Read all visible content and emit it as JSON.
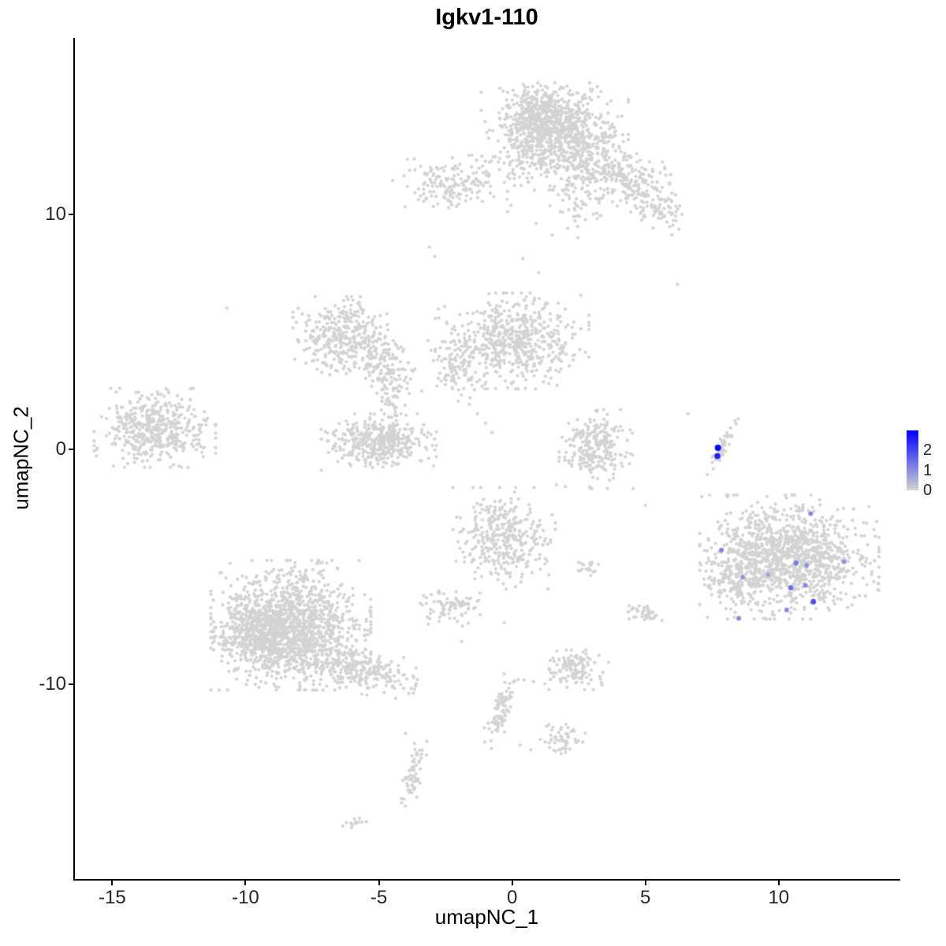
{
  "chart_data": {
    "type": "scatter",
    "title": "Igkv1-110",
    "xlabel": "umapNC_1",
    "ylabel": "umapNC_2",
    "xlim": [
      -16.4,
      14.5
    ],
    "ylim": [
      -18.3,
      17.5
    ],
    "x_ticks": [
      -15,
      -10,
      -5,
      0,
      5,
      10
    ],
    "y_ticks": [
      -10,
      0,
      10
    ],
    "grid": false,
    "legend_position": "right",
    "background_color": "#FFFFFF",
    "point_color": "#D3D3D3",
    "axis_color": "#000000",
    "colorbar": {
      "labels": [
        "2",
        "1",
        "0"
      ],
      "values": [
        2,
        1,
        0
      ],
      "bar_max": 3,
      "vmax": 2.6,
      "color_low": "#D3D3D3",
      "color_high": "#0000FF"
    },
    "clusters": [
      {
        "name": "top-main",
        "cx": 1.6,
        "cy": 13.3,
        "sx": 1.15,
        "sy": 0.95,
        "n": 800,
        "angle": 0
      },
      {
        "name": "top-main-dense",
        "cx": 1.1,
        "cy": 14.2,
        "sx": 0.65,
        "sy": 0.55,
        "n": 320,
        "angle": 0
      },
      {
        "name": "top-right-arm",
        "cx": 3.9,
        "cy": 11.7,
        "sx": 0.85,
        "sy": 0.5,
        "n": 220,
        "angle": -15
      },
      {
        "name": "top-right-ext",
        "cx": 5.2,
        "cy": 10.5,
        "sx": 0.6,
        "sy": 0.4,
        "n": 110,
        "angle": -25
      },
      {
        "name": "top-lower-tail",
        "cx": 2.5,
        "cy": 10.6,
        "sx": 0.45,
        "sy": 0.7,
        "n": 60,
        "angle": 0
      },
      {
        "name": "upper-left-small",
        "cx": -2.2,
        "cy": 11.3,
        "sx": 0.95,
        "sy": 0.5,
        "n": 170,
        "angle": 0
      },
      {
        "name": "mid-left",
        "cx": -6.3,
        "cy": 4.8,
        "sx": 0.8,
        "sy": 0.7,
        "n": 360,
        "angle": 0
      },
      {
        "name": "mid-left-arm",
        "cx": -4.7,
        "cy": 3.4,
        "sx": 0.45,
        "sy": 0.75,
        "n": 120,
        "angle": 20
      },
      {
        "name": "center-main",
        "cx": 0.0,
        "cy": 4.6,
        "sx": 1.2,
        "sy": 0.85,
        "n": 580,
        "angle": 0
      },
      {
        "name": "center-left-arm",
        "cx": -2.2,
        "cy": 3.6,
        "sx": 0.4,
        "sy": 0.65,
        "n": 80,
        "angle": 0
      },
      {
        "name": "center-bridge",
        "cx": -4.6,
        "cy": 2.0,
        "sx": 0.25,
        "sy": 0.7,
        "n": 45,
        "angle": 15
      },
      {
        "name": "crescent-mid",
        "cx": -5.0,
        "cy": 0.3,
        "sx": 0.9,
        "sy": 0.5,
        "n": 400,
        "angle": 0
      },
      {
        "name": "far-left",
        "cx": -13.4,
        "cy": 0.9,
        "sx": 0.95,
        "sy": 0.7,
        "n": 470,
        "angle": 0
      },
      {
        "name": "mid-right-small",
        "cx": 3.1,
        "cy": 0.0,
        "sx": 0.6,
        "sy": 0.7,
        "n": 250,
        "angle": 0
      },
      {
        "name": "right-streak",
        "cx": 7.9,
        "cy": 0.1,
        "sx": 0.1,
        "sy": 0.55,
        "n": 50,
        "angle": -25
      },
      {
        "name": "center-bottom",
        "cx": -0.3,
        "cy": -3.8,
        "sx": 0.8,
        "sy": 0.9,
        "n": 360,
        "angle": 0
      },
      {
        "name": "right-big",
        "cx": 10.4,
        "cy": -4.6,
        "sx": 1.4,
        "sy": 1.1,
        "n": 1200,
        "angle": 0
      },
      {
        "name": "right-big-left-arm",
        "cx": 8.4,
        "cy": -5.4,
        "sx": 0.55,
        "sy": 0.65,
        "n": 140,
        "angle": 0
      },
      {
        "name": "bottom-left-big",
        "cx": -8.3,
        "cy": -7.5,
        "sx": 1.25,
        "sy": 1.15,
        "n": 1250,
        "angle": 0
      },
      {
        "name": "bottom-left-dense",
        "cx": -9.4,
        "cy": -7.9,
        "sx": 0.75,
        "sy": 0.65,
        "n": 450,
        "angle": 0
      },
      {
        "name": "bottom-left-tail",
        "cx": -5.8,
        "cy": -9.4,
        "sx": 0.95,
        "sy": 0.4,
        "n": 260,
        "angle": -15
      },
      {
        "name": "small-left-bottom",
        "cx": -2.4,
        "cy": -6.7,
        "sx": 0.5,
        "sy": 0.35,
        "n": 85,
        "angle": 0
      },
      {
        "name": "tiny-mid-right",
        "cx": 2.8,
        "cy": -5.1,
        "sx": 0.2,
        "sy": 0.15,
        "n": 18,
        "angle": 0
      },
      {
        "name": "tiny-mid-right2",
        "cx": 4.9,
        "cy": -7.0,
        "sx": 0.3,
        "sy": 0.2,
        "n": 40,
        "angle": 0
      },
      {
        "name": "small-bottom-mid",
        "cx": 2.3,
        "cy": -9.4,
        "sx": 0.55,
        "sy": 0.35,
        "n": 130,
        "angle": 0
      },
      {
        "name": "bottom-center-streak",
        "cx": -0.4,
        "cy": -11.1,
        "sx": 0.18,
        "sy": 0.7,
        "n": 80,
        "angle": -20
      },
      {
        "name": "small-bottom2",
        "cx": 1.9,
        "cy": -12.4,
        "sx": 0.35,
        "sy": 0.3,
        "n": 55,
        "angle": 0
      },
      {
        "name": "bottom-left-streak",
        "cx": -3.7,
        "cy": -13.8,
        "sx": 0.16,
        "sy": 0.6,
        "n": 60,
        "angle": -15
      },
      {
        "name": "tiny-bottom-dash",
        "cx": -6.0,
        "cy": -15.9,
        "sx": 0.3,
        "sy": 0.1,
        "n": 12,
        "angle": 10
      }
    ],
    "sparse_points": [
      [
        -10.7,
        6.0
      ],
      [
        6.2,
        7.0
      ],
      [
        -3.1,
        8.6
      ],
      [
        -2.9,
        8.2
      ],
      [
        0.4,
        8.1
      ],
      [
        1.0,
        7.5
      ],
      [
        0.9,
        9.6
      ],
      [
        1.5,
        9.1
      ],
      [
        -1.9,
        2.3
      ],
      [
        -1.6,
        1.9
      ],
      [
        -1.3,
        1.5
      ],
      [
        -1.0,
        1.1
      ],
      [
        -0.75,
        0.7
      ],
      [
        2.0,
        -1.6
      ],
      [
        5.0,
        -2.4
      ],
      [
        -0.3,
        -7.4
      ],
      [
        0.8,
        -9.9
      ],
      [
        0.3,
        -12.6
      ],
      [
        0.7,
        -12.8
      ],
      [
        -4.0,
        -12.1
      ],
      [
        -1.9,
        -8.2
      ],
      [
        6.6,
        1.5
      ]
    ],
    "expressing_cells": [
      {
        "x": 7.72,
        "y": 0.05,
        "value": 2.5
      },
      {
        "x": 7.7,
        "y": -0.3,
        "value": 2.2
      },
      {
        "x": 11.2,
        "y": -2.75,
        "value": 0.9
      },
      {
        "x": 7.85,
        "y": -4.3,
        "value": 1.0
      },
      {
        "x": 10.65,
        "y": -4.85,
        "value": 1.1
      },
      {
        "x": 11.05,
        "y": -4.95,
        "value": 0.8
      },
      {
        "x": 12.45,
        "y": -4.8,
        "value": 0.8
      },
      {
        "x": 8.65,
        "y": -5.45,
        "value": 0.8
      },
      {
        "x": 9.6,
        "y": -5.35,
        "value": 0.6
      },
      {
        "x": 10.45,
        "y": -5.9,
        "value": 1.3
      },
      {
        "x": 11.0,
        "y": -5.8,
        "value": 0.9
      },
      {
        "x": 11.3,
        "y": -6.5,
        "value": 1.6
      },
      {
        "x": 10.3,
        "y": -6.85,
        "value": 0.9
      },
      {
        "x": 8.5,
        "y": -7.2,
        "value": 0.9
      }
    ]
  }
}
